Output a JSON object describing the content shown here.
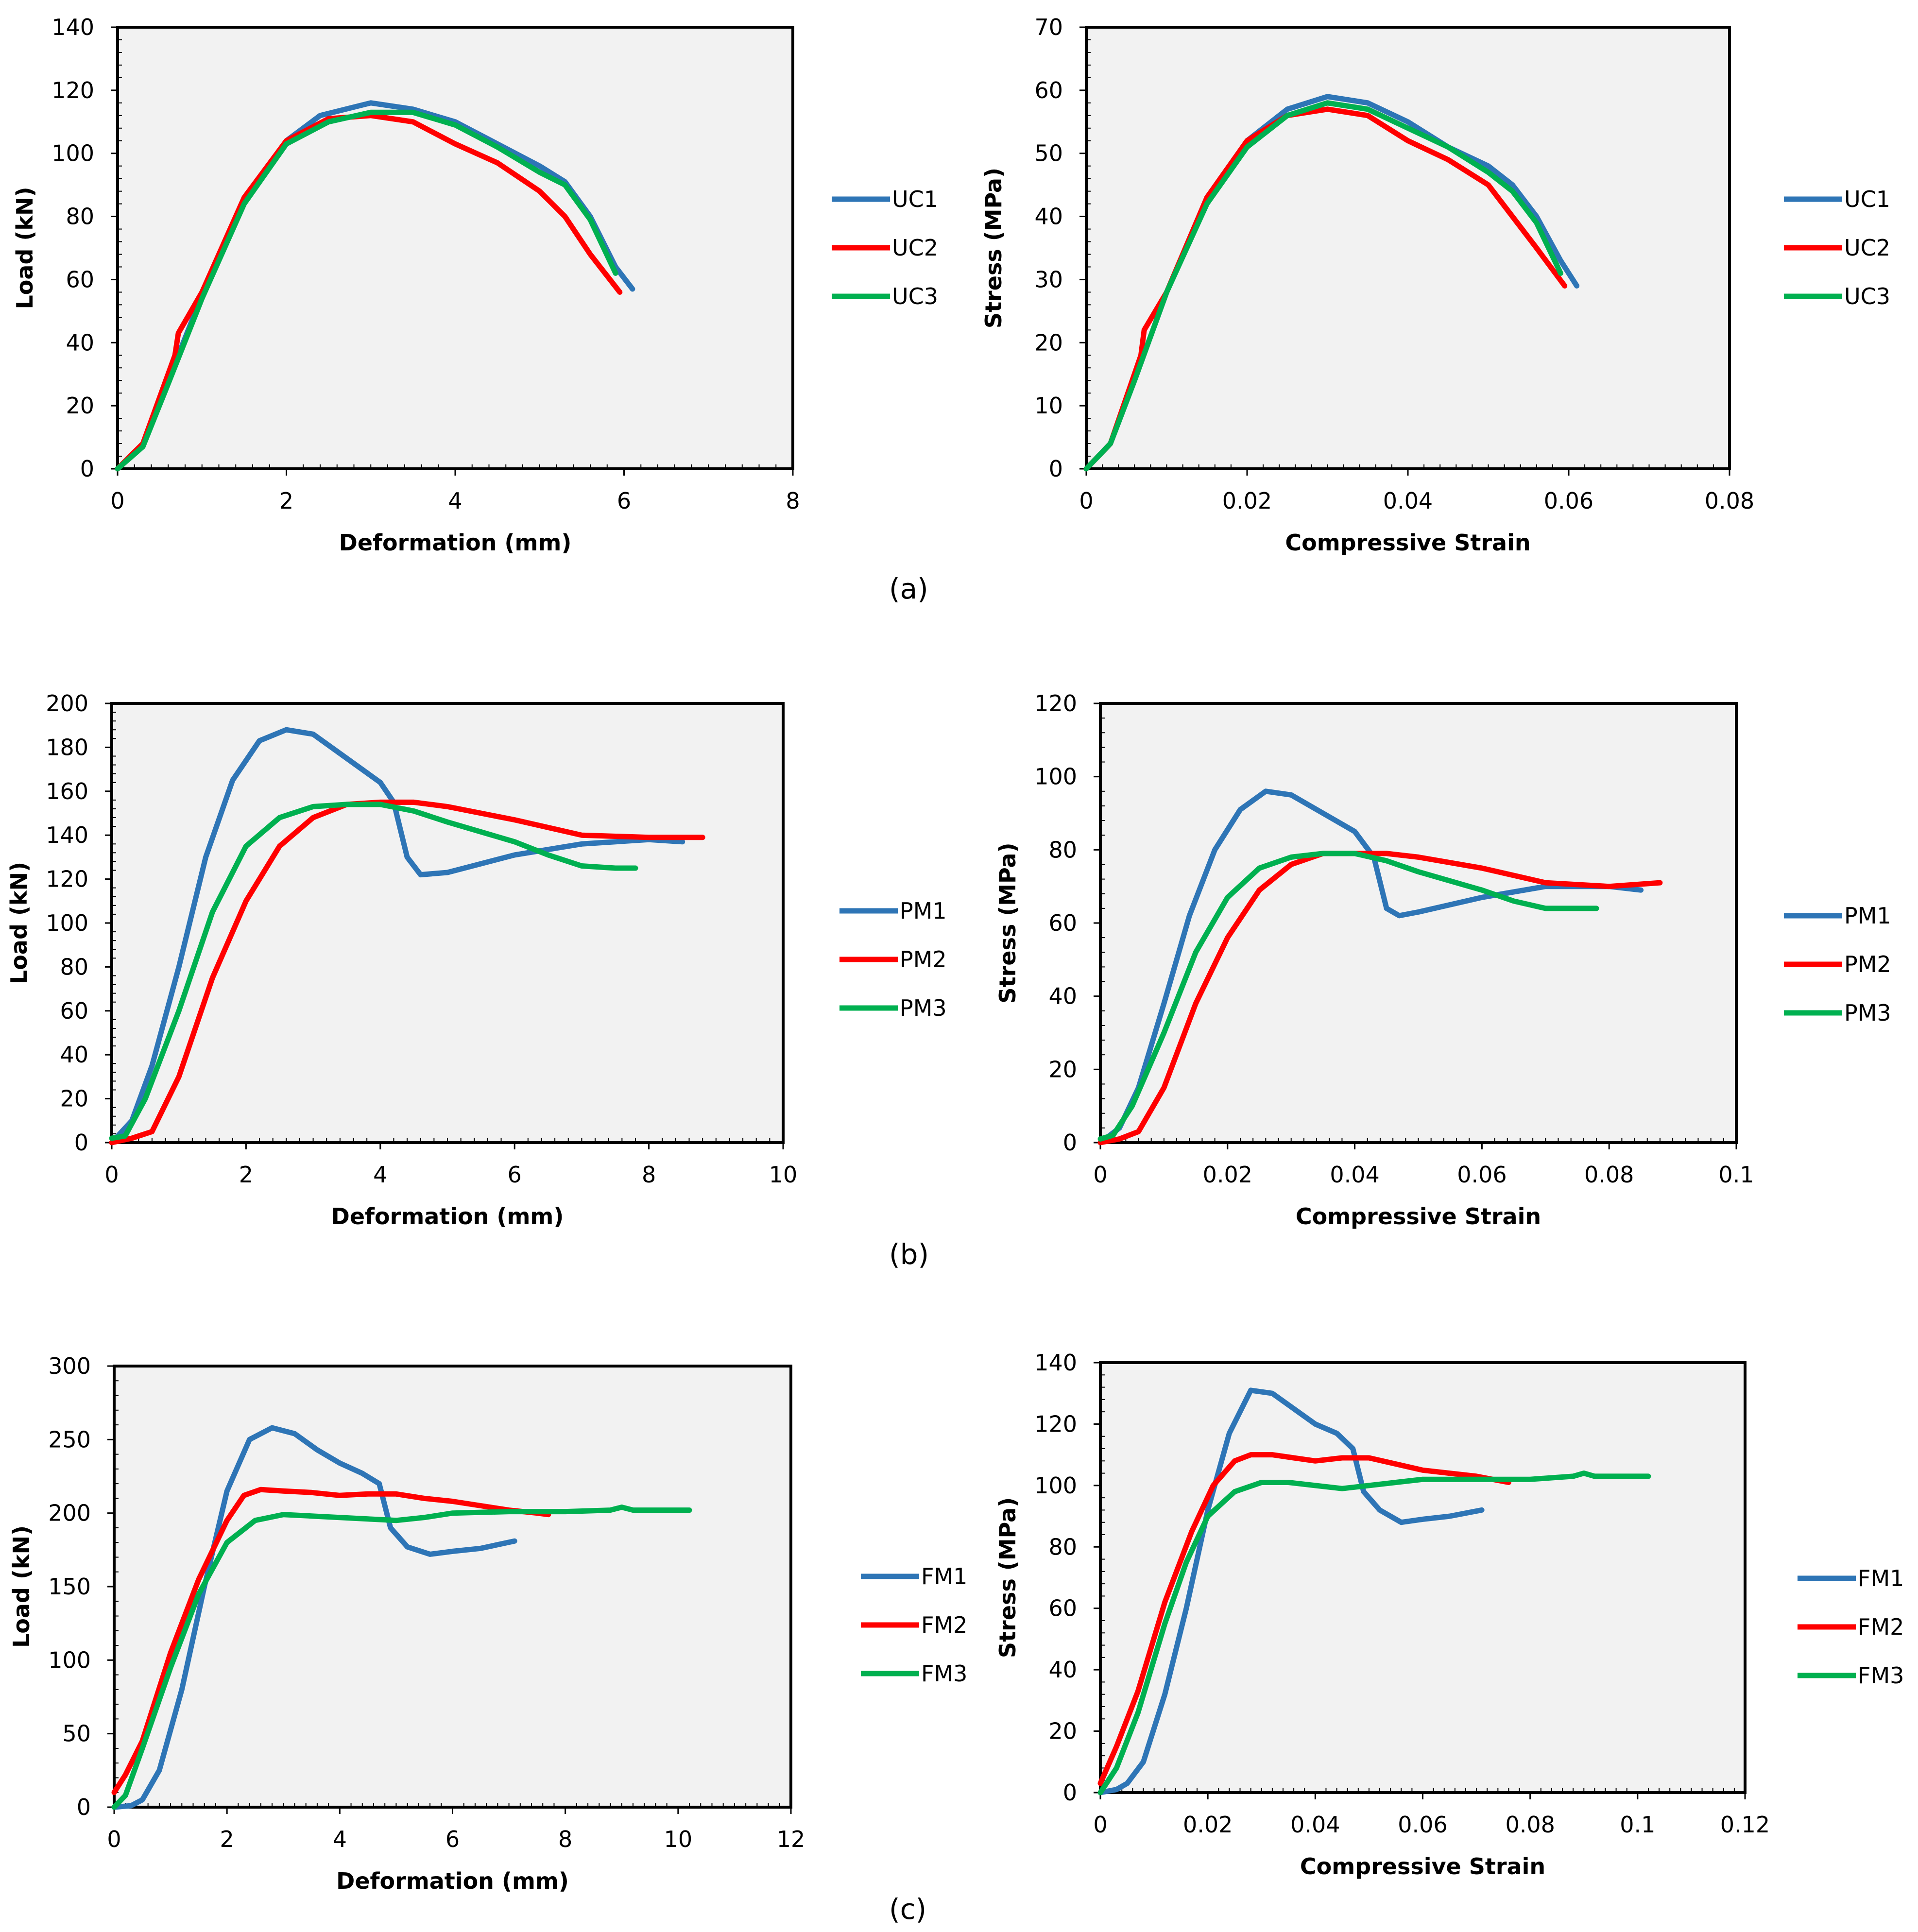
{
  "chart_data": [
    {
      "type": "line",
      "panel": "(a)",
      "xlabel": "Deformation (mm)",
      "ylabel": "Load (kN)",
      "xlim": [
        0,
        8
      ],
      "ylim": [
        0,
        140
      ],
      "xticks": [
        "0",
        "2",
        "4",
        "6",
        "8"
      ],
      "yticks": [
        "0",
        "20",
        "40",
        "60",
        "80",
        "100",
        "120",
        "140"
      ],
      "legend_position": "right",
      "series": [
        {
          "name": "UC1",
          "color": "#2E75B6",
          "x": [
            0,
            0.3,
            0.6,
            1.0,
            1.5,
            2.0,
            2.4,
            3.0,
            3.5,
            4.0,
            4.5,
            5.0,
            5.3,
            5.6,
            5.9,
            6.1
          ],
          "y": [
            0,
            8,
            28,
            55,
            85,
            104,
            112,
            116,
            114,
            110,
            103,
            96,
            91,
            80,
            64,
            57
          ]
        },
        {
          "name": "UC2",
          "color": "#FF0000",
          "x": [
            0,
            0.3,
            0.68,
            0.72,
            1.0,
            1.5,
            2.0,
            2.5,
            3.0,
            3.5,
            4.0,
            4.5,
            5.0,
            5.3,
            5.6,
            5.95
          ],
          "y": [
            0,
            8,
            36,
            43,
            56,
            86,
            104,
            111,
            112,
            110,
            103,
            97,
            88,
            80,
            68,
            56
          ]
        },
        {
          "name": "UC3",
          "color": "#00B050",
          "x": [
            0,
            0.3,
            0.6,
            1.0,
            1.5,
            2.0,
            2.5,
            3.0,
            3.5,
            4.0,
            4.5,
            5.0,
            5.3,
            5.6,
            5.9
          ],
          "y": [
            0,
            7,
            27,
            54,
            84,
            103,
            110,
            113,
            113,
            109,
            102,
            94,
            90,
            79,
            62
          ]
        }
      ]
    },
    {
      "type": "line",
      "panel": "(a)",
      "xlabel": "Compressive Strain",
      "ylabel": "Stress (MPa)",
      "xlim": [
        0,
        0.08
      ],
      "ylim": [
        0,
        70
      ],
      "xticks": [
        "0",
        "0.02",
        "0.04",
        "0.06",
        "0.08"
      ],
      "yticks": [
        "0",
        "10",
        "20",
        "30",
        "40",
        "50",
        "60",
        "70"
      ],
      "legend_position": "right",
      "series": [
        {
          "name": "UC1",
          "color": "#2E75B6",
          "x": [
            0,
            0.003,
            0.006,
            0.01,
            0.015,
            0.02,
            0.025,
            0.03,
            0.035,
            0.04,
            0.045,
            0.05,
            0.053,
            0.056,
            0.059,
            0.061
          ],
          "y": [
            0,
            4,
            14,
            28,
            43,
            52,
            57,
            59,
            58,
            55,
            51,
            48,
            45,
            40,
            33,
            29
          ]
        },
        {
          "name": "UC2",
          "color": "#FF0000",
          "x": [
            0,
            0.003,
            0.0068,
            0.0072,
            0.01,
            0.015,
            0.02,
            0.025,
            0.03,
            0.035,
            0.04,
            0.045,
            0.05,
            0.053,
            0.056,
            0.0595
          ],
          "y": [
            0,
            4,
            18,
            22,
            28,
            43,
            52,
            56,
            57,
            56,
            52,
            49,
            45,
            40,
            35,
            29
          ]
        },
        {
          "name": "UC3",
          "color": "#00B050",
          "x": [
            0,
            0.003,
            0.006,
            0.01,
            0.015,
            0.02,
            0.025,
            0.03,
            0.035,
            0.04,
            0.045,
            0.05,
            0.053,
            0.056,
            0.059
          ],
          "y": [
            0,
            4,
            14,
            28,
            42,
            51,
            56,
            58,
            57,
            54,
            51,
            47,
            44,
            39,
            31
          ]
        }
      ]
    },
    {
      "type": "line",
      "panel": "(b)",
      "xlabel": "Deformation (mm)",
      "ylabel": "Load (kN)",
      "xlim": [
        0,
        10
      ],
      "ylim": [
        0,
        200
      ],
      "xticks": [
        "0",
        "2",
        "4",
        "6",
        "8",
        "10"
      ],
      "yticks": [
        "0",
        "20",
        "40",
        "60",
        "80",
        "100",
        "120",
        "140",
        "160",
        "180",
        "200"
      ],
      "legend_position": "right",
      "series": [
        {
          "name": "PM1",
          "color": "#2E75B6",
          "x": [
            0,
            0.3,
            0.6,
            1.0,
            1.4,
            1.8,
            2.2,
            2.6,
            3.0,
            3.5,
            4.0,
            4.2,
            4.4,
            4.6,
            5.0,
            6.0,
            7.0,
            8.0,
            8.5
          ],
          "y": [
            0,
            10,
            35,
            80,
            130,
            165,
            183,
            188,
            186,
            175,
            164,
            155,
            130,
            122,
            123,
            131,
            136,
            138,
            137
          ]
        },
        {
          "name": "PM2",
          "color": "#FF0000",
          "x": [
            0,
            0.3,
            0.6,
            1.0,
            1.5,
            2.0,
            2.5,
            3.0,
            3.5,
            4.0,
            4.5,
            5.0,
            6.0,
            7.0,
            8.0,
            8.8
          ],
          "y": [
            0,
            2,
            5,
            30,
            75,
            110,
            135,
            148,
            154,
            155,
            155,
            153,
            147,
            140,
            139,
            139
          ]
        },
        {
          "name": "PM3",
          "color": "#00B050",
          "x": [
            0,
            0.2,
            0.5,
            1.0,
            1.5,
            2.0,
            2.5,
            3.0,
            3.5,
            4.0,
            4.5,
            5.0,
            6.0,
            6.5,
            7.0,
            7.5,
            7.8
          ],
          "y": [
            2,
            3,
            20,
            60,
            105,
            135,
            148,
            153,
            154,
            154,
            151,
            146,
            137,
            131,
            126,
            125,
            125
          ]
        }
      ]
    },
    {
      "type": "line",
      "panel": "(b)",
      "xlabel": "Compressive Strain",
      "ylabel": "Stress (MPa)",
      "xlim": [
        0,
        0.1
      ],
      "ylim": [
        0,
        120
      ],
      "xticks": [
        "0",
        "0.02",
        "0.04",
        "0.06",
        "0.08",
        "0.1"
      ],
      "yticks": [
        "0",
        "20",
        "40",
        "60",
        "80",
        "100",
        "120"
      ],
      "legend_position": "right",
      "series": [
        {
          "name": "PM1",
          "color": "#2E75B6",
          "x": [
            0,
            0.003,
            0.006,
            0.01,
            0.014,
            0.018,
            0.022,
            0.026,
            0.03,
            0.035,
            0.04,
            0.043,
            0.045,
            0.047,
            0.05,
            0.06,
            0.07,
            0.08,
            0.085
          ],
          "y": [
            0,
            4,
            15,
            38,
            62,
            80,
            91,
            96,
            95,
            90,
            85,
            78,
            64,
            62,
            63,
            67,
            70,
            70,
            69
          ]
        },
        {
          "name": "PM2",
          "color": "#FF0000",
          "x": [
            0,
            0.003,
            0.006,
            0.01,
            0.015,
            0.02,
            0.025,
            0.03,
            0.035,
            0.04,
            0.045,
            0.05,
            0.06,
            0.07,
            0.08,
            0.088
          ],
          "y": [
            0,
            1,
            3,
            15,
            38,
            56,
            69,
            76,
            79,
            79,
            79,
            78,
            75,
            71,
            70,
            71
          ]
        },
        {
          "name": "PM3",
          "color": "#00B050",
          "x": [
            0,
            0.002,
            0.005,
            0.01,
            0.015,
            0.02,
            0.025,
            0.03,
            0.035,
            0.04,
            0.045,
            0.05,
            0.06,
            0.065,
            0.07,
            0.075,
            0.078
          ],
          "y": [
            1,
            2,
            10,
            30,
            52,
            67,
            75,
            78,
            79,
            79,
            77,
            74,
            69,
            66,
            64,
            64,
            64
          ]
        }
      ]
    },
    {
      "type": "line",
      "panel": "(c)",
      "xlabel": "Deformation (mm)",
      "ylabel": "Load (kN)",
      "xlim": [
        0,
        12
      ],
      "ylim": [
        0,
        300
      ],
      "xticks": [
        "0",
        "2",
        "4",
        "6",
        "8",
        "10",
        "12"
      ],
      "yticks": [
        "0",
        "50",
        "100",
        "150",
        "200",
        "250",
        "300"
      ],
      "legend_position": "right",
      "series": [
        {
          "name": "FM1",
          "color": "#2E75B6",
          "x": [
            0,
            0.3,
            0.5,
            0.8,
            1.2,
            1.6,
            2.0,
            2.4,
            2.8,
            3.2,
            3.6,
            4.0,
            4.4,
            4.7,
            4.9,
            5.2,
            5.6,
            6.0,
            6.5,
            7.1
          ],
          "y": [
            0,
            1,
            5,
            25,
            80,
            150,
            215,
            250,
            258,
            254,
            243,
            234,
            227,
            220,
            190,
            177,
            172,
            174,
            176,
            181
          ]
        },
        {
          "name": "FM2",
          "color": "#FF0000",
          "x": [
            0,
            0.2,
            0.5,
            1.0,
            1.5,
            2.0,
            2.3,
            2.6,
            3.0,
            3.5,
            4.0,
            4.5,
            5.0,
            5.5,
            6.0,
            6.5,
            7.0,
            7.5,
            7.7
          ],
          "y": [
            10,
            22,
            45,
            105,
            155,
            195,
            212,
            216,
            215,
            214,
            212,
            213,
            213,
            210,
            208,
            205,
            202,
            200,
            199
          ]
        },
        {
          "name": "FM3",
          "color": "#00B050",
          "x": [
            0,
            0.2,
            0.5,
            1.0,
            1.5,
            2.0,
            2.5,
            3.0,
            3.5,
            4.0,
            4.5,
            5.0,
            5.5,
            6.0,
            7.0,
            8.0,
            8.8,
            9.0,
            9.2,
            10.2
          ],
          "y": [
            0,
            8,
            40,
            95,
            145,
            180,
            195,
            199,
            198,
            197,
            196,
            195,
            197,
            200,
            201,
            201,
            202,
            204,
            202,
            202
          ]
        }
      ]
    },
    {
      "type": "line",
      "panel": "(c)",
      "xlabel": "Compressive Strain",
      "ylabel": "Stress (MPa)",
      "xlim": [
        0,
        0.12
      ],
      "ylim": [
        0,
        140
      ],
      "xticks": [
        "0",
        "0.02",
        "0.04",
        "0.06",
        "0.08",
        "0.1",
        "0.12"
      ],
      "yticks": [
        "0",
        "20",
        "40",
        "60",
        "80",
        "100",
        "120",
        "140"
      ],
      "legend_position": "right",
      "series": [
        {
          "name": "FM1",
          "color": "#2E75B6",
          "x": [
            0,
            0.003,
            0.005,
            0.008,
            0.012,
            0.016,
            0.02,
            0.024,
            0.028,
            0.032,
            0.036,
            0.04,
            0.044,
            0.047,
            0.049,
            0.052,
            0.056,
            0.06,
            0.065,
            0.071
          ],
          "y": [
            0,
            1,
            3,
            10,
            32,
            60,
            92,
            117,
            131,
            130,
            125,
            120,
            117,
            112,
            98,
            92,
            88,
            89,
            90,
            92
          ]
        },
        {
          "name": "FM2",
          "color": "#FF0000",
          "x": [
            0,
            0.003,
            0.007,
            0.012,
            0.017,
            0.021,
            0.025,
            0.028,
            0.032,
            0.036,
            0.04,
            0.045,
            0.05,
            0.055,
            0.06,
            0.065,
            0.07,
            0.076
          ],
          "y": [
            3,
            15,
            33,
            62,
            85,
            100,
            108,
            110,
            110,
            109,
            108,
            109,
            109,
            107,
            105,
            104,
            103,
            101
          ]
        },
        {
          "name": "FM3",
          "color": "#00B050",
          "x": [
            0,
            0.003,
            0.007,
            0.012,
            0.016,
            0.02,
            0.025,
            0.03,
            0.035,
            0.04,
            0.045,
            0.05,
            0.055,
            0.06,
            0.07,
            0.08,
            0.088,
            0.09,
            0.092,
            0.102
          ],
          "y": [
            0,
            8,
            26,
            55,
            75,
            90,
            98,
            101,
            101,
            100,
            99,
            100,
            101,
            102,
            102,
            102,
            103,
            104,
            103,
            103
          ]
        }
      ]
    }
  ],
  "panel_labels": [
    "(a)",
    "(b)",
    "(c)"
  ]
}
